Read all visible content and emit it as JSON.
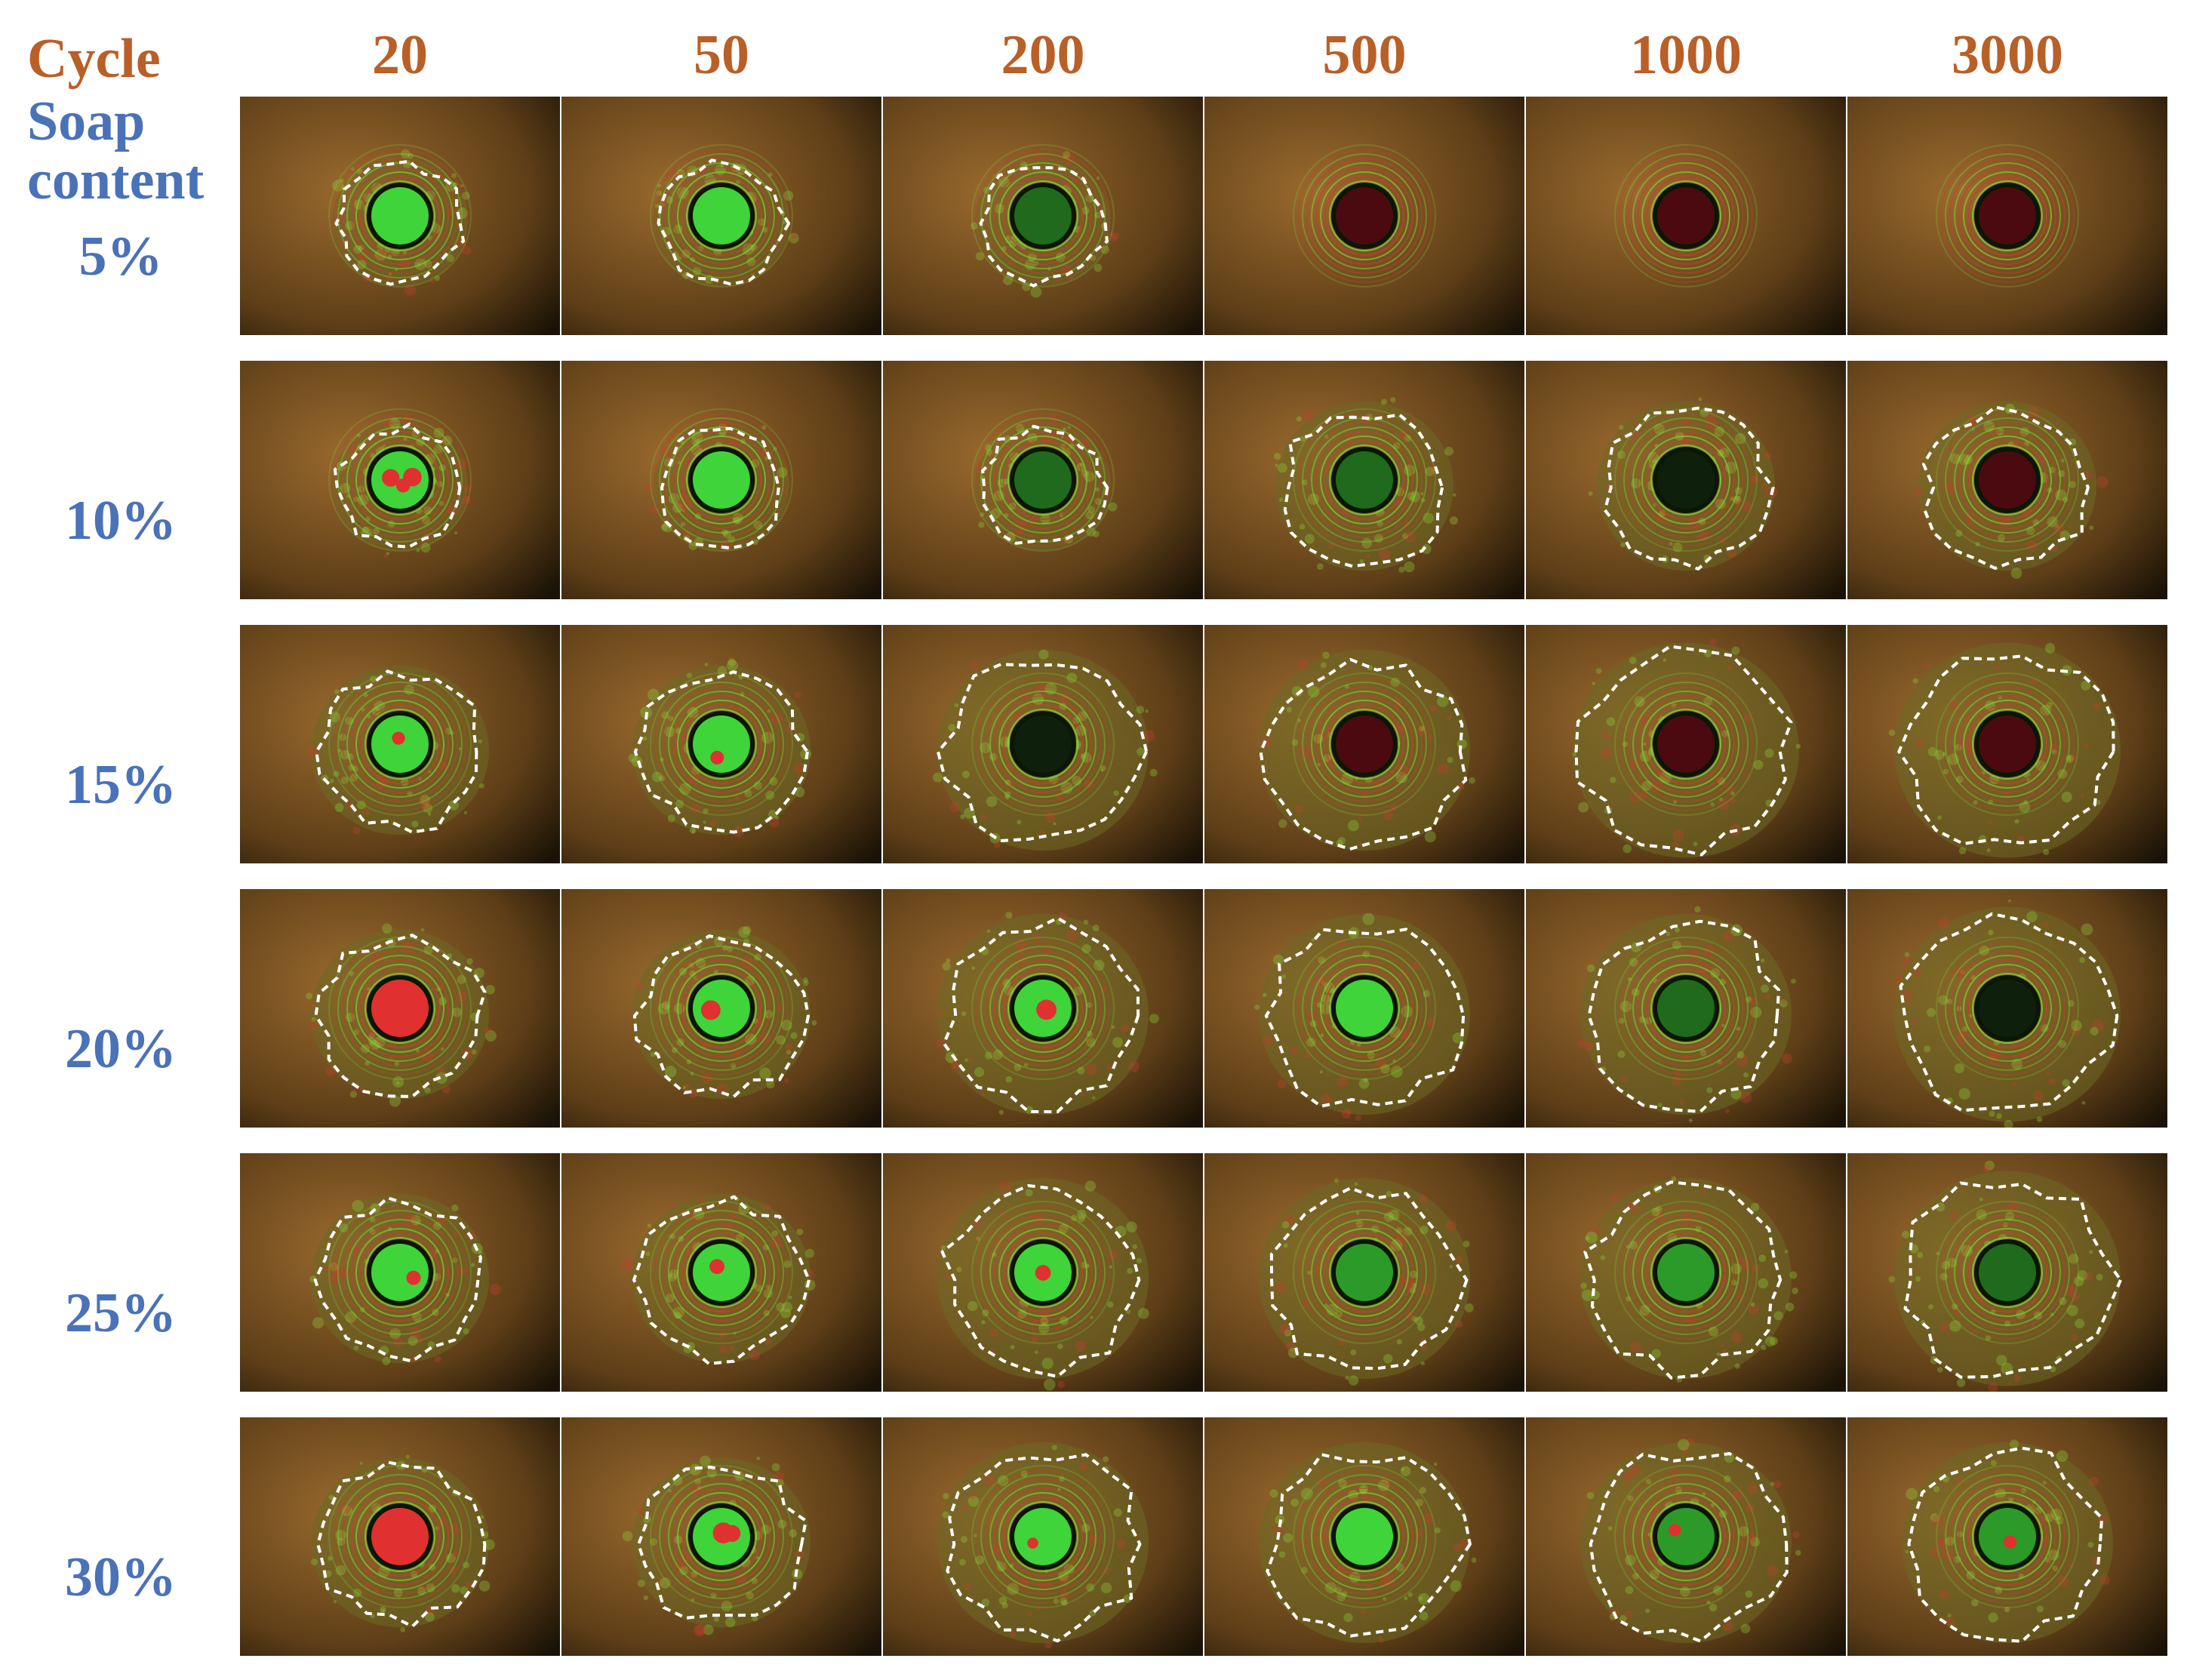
{
  "header_color": "#b95f28",
  "label_color": "#4a72b8",
  "corner": {
    "cycle_label": "Cycle",
    "soap_label": "Soap content"
  },
  "cycles": [
    "20",
    "50",
    "200",
    "500",
    "1000",
    "3000"
  ],
  "soap_contents": [
    "5%",
    "10%",
    "15%",
    "20%",
    "25%",
    "30%"
  ],
  "colors": {
    "substrate": "#9a6a2e",
    "substrate_dark": "#5f3f18",
    "vignette": "#1a1206",
    "fringe_green": "#8ccf3a",
    "fringe_red": "#c2402e",
    "contact_green": "#3fd43a",
    "contact_red": "#e03030",
    "contact_dark_red": "#4a0a10",
    "boundary_dash": "#ffffff"
  },
  "panels": [
    [
      {
        "center": "green",
        "red_spots": 0,
        "wear_scar": "medium",
        "outlined": true
      },
      {
        "center": "green",
        "red_spots": 0,
        "wear_scar": "medium",
        "outlined": true
      },
      {
        "center": "dark-green",
        "red_spots": 0,
        "wear_scar": "medium",
        "outlined": true
      },
      {
        "center": "dark-red",
        "red_spots": 0,
        "wear_scar": "none",
        "outlined": false
      },
      {
        "center": "dark-red",
        "red_spots": 0,
        "wear_scar": "none",
        "outlined": false
      },
      {
        "center": "dark-red",
        "red_spots": 0,
        "wear_scar": "none",
        "outlined": false
      }
    ],
    [
      {
        "center": "green",
        "red_spots": 3,
        "wear_scar": "medium",
        "outlined": true
      },
      {
        "center": "green",
        "red_spots": 0,
        "wear_scar": "medium",
        "outlined": true
      },
      {
        "center": "dark-green",
        "red_spots": 0,
        "wear_scar": "medium",
        "outlined": true
      },
      {
        "center": "dark-green",
        "red_spots": 0,
        "wear_scar": "large",
        "outlined": true
      },
      {
        "center": "dark",
        "red_spots": 0,
        "wear_scar": "large",
        "outlined": true
      },
      {
        "center": "dark-red",
        "red_spots": 0,
        "wear_scar": "large",
        "outlined": true
      }
    ],
    [
      {
        "center": "green",
        "red_spots": 1,
        "wear_scar": "large",
        "outlined": true
      },
      {
        "center": "green",
        "red_spots": 1,
        "wear_scar": "large",
        "outlined": true
      },
      {
        "center": "dark",
        "red_spots": 0,
        "wear_scar": "xlarge",
        "outlined": true
      },
      {
        "center": "dark-red",
        "red_spots": 0,
        "wear_scar": "xlarge",
        "outlined": true
      },
      {
        "center": "dark-red",
        "red_spots": 0,
        "wear_scar": "open",
        "outlined": true
      },
      {
        "center": "dark-red",
        "red_spots": 0,
        "wear_scar": "open",
        "outlined": true
      }
    ],
    [
      {
        "center": "red",
        "red_spots": 1,
        "wear_scar": "large",
        "outlined": true
      },
      {
        "center": "green",
        "red_spots": 1,
        "wear_scar": "large",
        "outlined": true
      },
      {
        "center": "green",
        "red_spots": 1,
        "wear_scar": "xlarge",
        "outlined": true
      },
      {
        "center": "green",
        "red_spots": 0,
        "wear_scar": "xlarge",
        "outlined": true
      },
      {
        "center": "dark-green",
        "red_spots": 0,
        "wear_scar": "xlarge",
        "outlined": true
      },
      {
        "center": "dark",
        "red_spots": 0,
        "wear_scar": "open",
        "outlined": true
      }
    ],
    [
      {
        "center": "green",
        "red_spots": 1,
        "wear_scar": "large",
        "outlined": true
      },
      {
        "center": "green",
        "red_spots": 1,
        "wear_scar": "large",
        "outlined": true
      },
      {
        "center": "green",
        "red_spots": 1,
        "wear_scar": "xlarge",
        "outlined": true
      },
      {
        "center": "green-dark",
        "red_spots": 0,
        "wear_scar": "xlarge",
        "outlined": true
      },
      {
        "center": "green-dark",
        "red_spots": 0,
        "wear_scar": "xlarge",
        "outlined": true
      },
      {
        "center": "dark-green",
        "red_spots": 0,
        "wear_scar": "open",
        "outlined": true
      }
    ],
    [
      {
        "center": "red",
        "red_spots": 4,
        "wear_scar": "large",
        "outlined": true
      },
      {
        "center": "green",
        "red_spots": 2,
        "wear_scar": "large",
        "outlined": true
      },
      {
        "center": "green",
        "red_spots": 1,
        "wear_scar": "xlarge",
        "outlined": true
      },
      {
        "center": "green",
        "red_spots": 0,
        "wear_scar": "xlarge",
        "outlined": true
      },
      {
        "center": "green-dark",
        "red_spots": 1,
        "wear_scar": "xlarge",
        "outlined": true
      },
      {
        "center": "green-dark",
        "red_spots": 1,
        "wear_scar": "xlarge",
        "outlined": true
      }
    ]
  ]
}
